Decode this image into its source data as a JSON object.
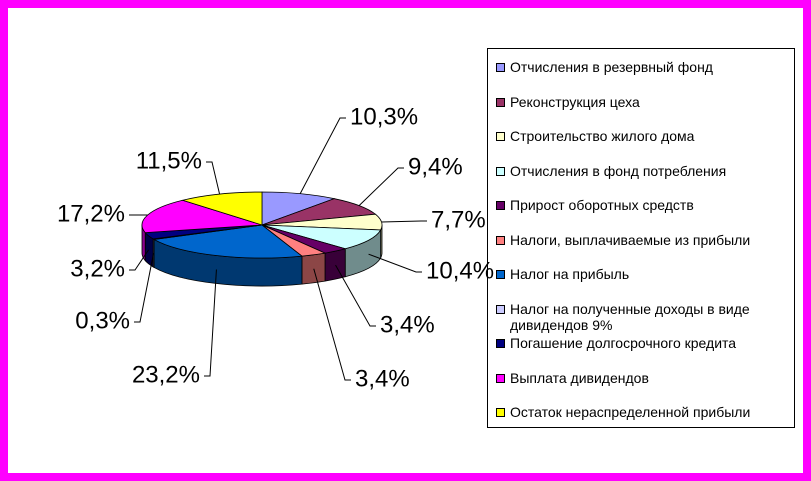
{
  "chart_data": {
    "type": "pie",
    "categories": [
      "Отчисления в резервный фонд",
      "Реконструкция цеха",
      "Строительство жилого дома",
      "Отчисления в фонд потребления",
      "Прирост оборотных средств",
      "Налоги, выплачиваемые из прибыли",
      "Налог на прибыль",
      "Налог на полученные доходы в виде дивидендов 9%",
      "Погашение долгосрочного кредита",
      "Выплата дивидендов",
      "Остаток нераспределенной прибыли"
    ],
    "values": [
      10.3,
      9.4,
      7.7,
      10.4,
      3.4,
      3.4,
      23.2,
      0.3,
      3.2,
      17.2,
      11.5
    ],
    "value_labels": [
      "10,3%",
      "9,4%",
      "7,7%",
      "10,4%",
      "3,4%",
      "3,4%",
      "23,2%",
      "0,3%",
      "3,2%",
      "17,2%",
      "11,5%"
    ],
    "colors": [
      "#9999ff",
      "#993366",
      "#ffffcc",
      "#ccffff",
      "#660066",
      "#ff8080",
      "#0066cc",
      "#ccccff",
      "#000080",
      "#ff00ff",
      "#ffff00"
    ]
  }
}
